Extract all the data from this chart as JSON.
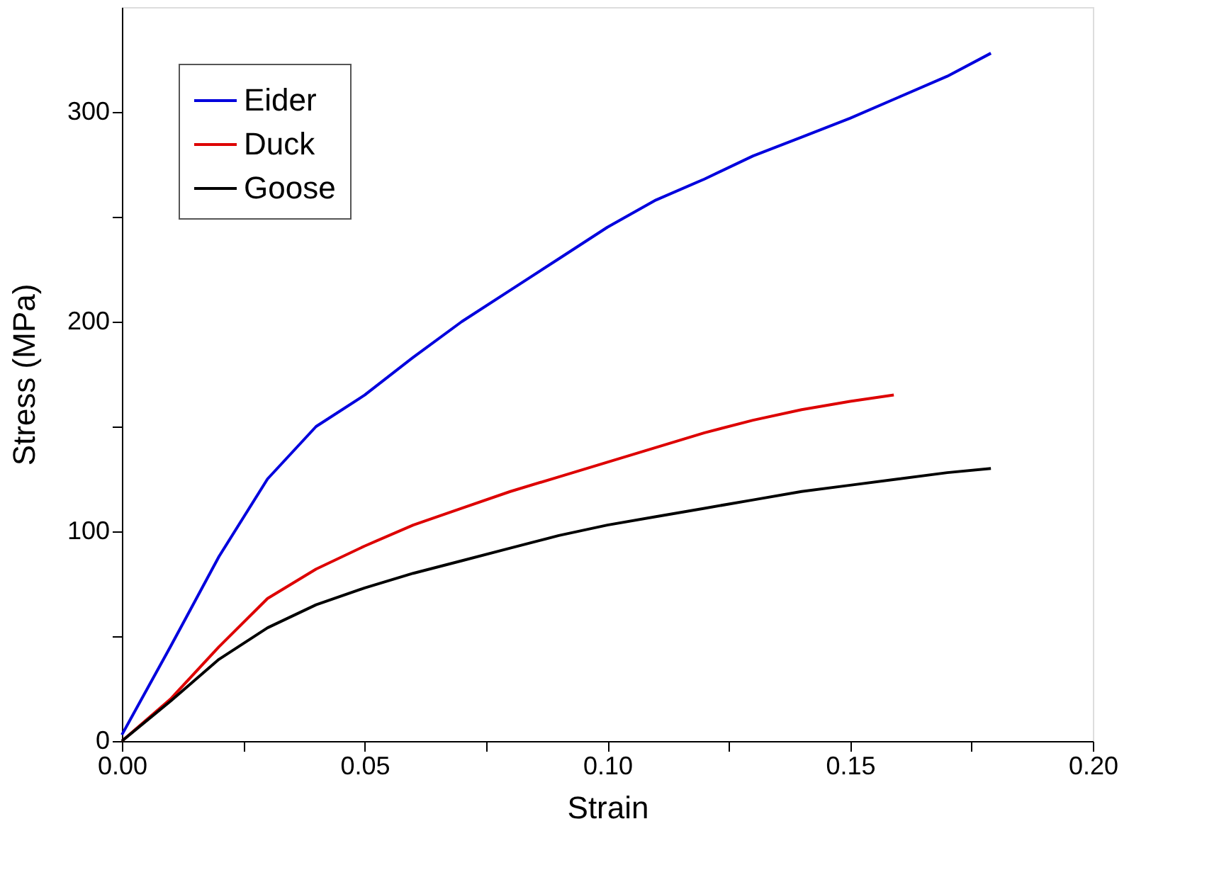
{
  "chart_data": {
    "type": "line",
    "xlabel": "Strain",
    "ylabel": "Stress (MPa)",
    "xlim": [
      0,
      0.2
    ],
    "ylim": [
      0,
      350
    ],
    "xticks": [
      {
        "value": 0,
        "label": "0.00"
      },
      {
        "value": 0.025,
        "label": null
      },
      {
        "value": 0.05,
        "label": "0.05"
      },
      {
        "value": 0.075,
        "label": null
      },
      {
        "value": 0.1,
        "label": "0.10"
      },
      {
        "value": 0.125,
        "label": null
      },
      {
        "value": 0.15,
        "label": "0.15"
      },
      {
        "value": 0.175,
        "label": null
      },
      {
        "value": 0.2,
        "label": "0.20"
      }
    ],
    "yticks": [
      0,
      {
        "value": 50,
        "label": null
      },
      100,
      {
        "value": 150,
        "label": null
      },
      200,
      {
        "value": 250,
        "label": null
      },
      300
    ],
    "grid": false,
    "legend": "top left",
    "marker": "none",
    "line_style": "solid",
    "series": [
      {
        "name": "Eider",
        "color": "#0000dd",
        "x": [
          0,
          0.01,
          0.02,
          0.03,
          0.04,
          0.05,
          0.06,
          0.07,
          0.08,
          0.09,
          0.1,
          0.11,
          0.12,
          0.13,
          0.14,
          0.15,
          0.16,
          0.17,
          0.179
        ],
        "values": [
          3,
          45,
          88,
          125,
          150,
          165,
          183,
          200,
          215,
          230,
          245,
          258,
          268,
          279,
          288,
          297,
          307,
          317,
          328
        ]
      },
      {
        "name": "Duck",
        "color": "#dd0000",
        "x": [
          0,
          0.01,
          0.02,
          0.03,
          0.04,
          0.05,
          0.06,
          0.07,
          0.08,
          0.09,
          0.1,
          0.11,
          0.12,
          0.13,
          0.14,
          0.15,
          0.159
        ],
        "values": [
          0,
          20,
          45,
          68,
          82,
          93,
          103,
          111,
          119,
          126,
          133,
          140,
          147,
          153,
          158,
          162,
          165
        ]
      },
      {
        "name": "Goose",
        "color": "#000000",
        "x": [
          0,
          0.01,
          0.02,
          0.03,
          0.04,
          0.05,
          0.06,
          0.07,
          0.08,
          0.09,
          0.1,
          0.11,
          0.12,
          0.13,
          0.14,
          0.15,
          0.16,
          0.17,
          0.179
        ],
        "values": [
          0,
          19,
          39,
          54,
          65,
          73,
          80,
          86,
          92,
          98,
          103,
          107,
          111,
          115,
          119,
          122,
          125,
          128,
          130
        ]
      }
    ]
  }
}
